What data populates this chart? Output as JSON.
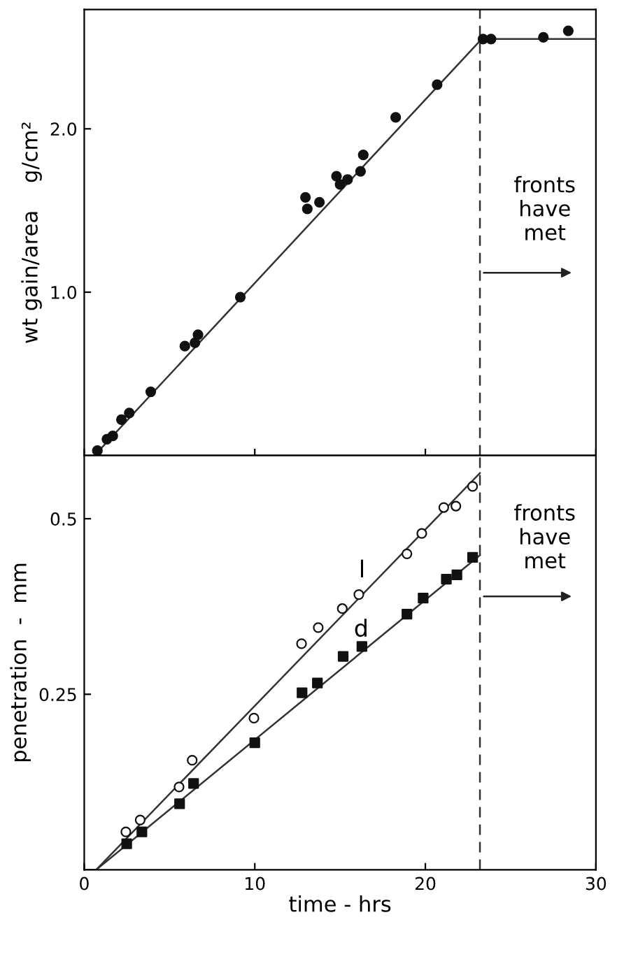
{
  "chart_data": [
    {
      "type": "scatter",
      "ylabel": "wt gain/area    g/cm²",
      "xlim": [
        0,
        30
      ],
      "xticks": [
        {
          "value": 0,
          "label": null
        },
        {
          "value": 10,
          "label": null
        },
        {
          "value": 20,
          "label": null
        },
        {
          "value": 30,
          "label": null
        }
      ],
      "ylim": [
        0,
        2.73
      ],
      "yticks": [
        {
          "value": 1,
          "label": "1.0"
        },
        {
          "value": 2,
          "label": "2.0"
        }
      ],
      "tick_labels": "y",
      "grid": false,
      "legend": false,
      "series": [
        {
          "marker": "circle",
          "color": "#111111",
          "x": [
            0.77,
            1.33,
            1.67,
            2.18,
            2.64,
            3.9,
            5.9,
            6.49,
            6.67,
            9.15,
            12.97,
            13.08,
            13.79,
            14.79,
            15.0,
            15.44,
            16.2,
            16.36,
            18.26,
            20.69,
            23.38,
            23.85,
            26.92,
            28.38
          ],
          "values": [
            0.03,
            0.1,
            0.12,
            0.22,
            0.26,
            0.39,
            0.67,
            0.69,
            0.74,
            0.97,
            1.58,
            1.51,
            1.55,
            1.71,
            1.66,
            1.69,
            1.74,
            1.84,
            2.07,
            2.27,
            2.55,
            2.55,
            2.56,
            2.6
          ]
        },
        {
          "type": "line",
          "color": "#333333",
          "x": [
            0.6,
            23.3,
            30
          ],
          "values": [
            0,
            2.55,
            2.55
          ]
        }
      ],
      "ref_lines": [
        {
          "axis": "x",
          "value": 23.2,
          "line_style": "dashed",
          "color": "#333333"
        }
      ],
      "annotations": [
        "fronts\nhave\nmet"
      ]
    },
    {
      "type": "scatter",
      "xlabel": "time - hrs",
      "ylabel": "penetration  -  mm",
      "xlim": [
        0,
        30
      ],
      "xticks": [
        0,
        10,
        20,
        30
      ],
      "ylim": [
        0,
        0.59
      ],
      "yticks": [
        {
          "value": 0.25,
          "label": "0.25"
        },
        {
          "value": 0.5,
          "label": "0.5"
        }
      ],
      "grid": false,
      "legend": false,
      "series": [
        {
          "marker": "circle",
          "color": "#ffffff",
          "x": [
            2.44,
            3.28,
            5.56,
            6.33,
            9.95,
            12.74,
            13.72,
            15.13,
            16.1,
            18.92,
            19.79,
            21.08,
            21.79,
            22.77
          ],
          "values": [
            0.054,
            0.071,
            0.118,
            0.156,
            0.216,
            0.322,
            0.345,
            0.372,
            0.392,
            0.45,
            0.479,
            0.516,
            0.518,
            0.546
          ]
        },
        {
          "marker": "square",
          "color": "#111111",
          "x": [
            2.49,
            3.38,
            5.59,
            6.41,
            10.0,
            12.77,
            13.67,
            15.18,
            16.28,
            18.92,
            19.87,
            21.23,
            21.85,
            22.77
          ],
          "values": [
            0.037,
            0.054,
            0.094,
            0.123,
            0.181,
            0.252,
            0.266,
            0.304,
            0.318,
            0.364,
            0.387,
            0.414,
            0.42,
            0.445
          ]
        },
        {
          "type": "line",
          "name": "l",
          "color": "#333333",
          "x": [
            0,
            0.7,
            23.2
          ],
          "values": [
            0,
            0,
            0.565
          ]
        },
        {
          "type": "line",
          "name": "d",
          "color": "#333333",
          "x": [
            0.7,
            23.2
          ],
          "values": [
            0,
            0.448
          ]
        }
      ],
      "ref_lines": [
        {
          "axis": "x",
          "value": 23.2,
          "line_style": "dashed",
          "color": "#333333"
        }
      ],
      "annotations": [
        "fronts\nhave\nmet"
      ]
    }
  ]
}
